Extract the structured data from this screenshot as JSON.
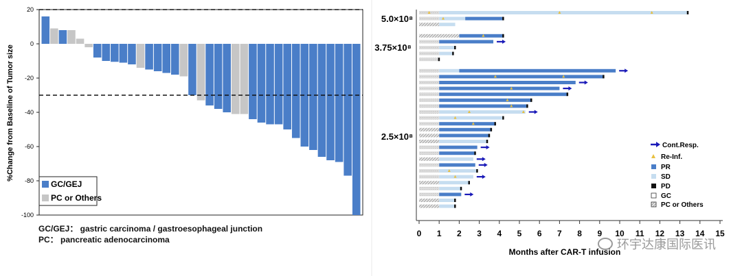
{
  "chart_data": [
    {
      "type": "bar",
      "title": "",
      "ylabel": "%Change from Baseline of Tumor size",
      "xlabel": "",
      "ylim": [
        -100,
        20
      ],
      "yticks": [
        20,
        0,
        -20,
        -40,
        -60,
        -80,
        -100
      ],
      "reference_lines": [
        20,
        -30
      ],
      "values": [
        16,
        9,
        8,
        8,
        3,
        -2,
        -8,
        -10,
        -10.5,
        -11,
        -12,
        -14,
        -15,
        -16,
        -17,
        -18,
        -19,
        -30,
        -33,
        -36,
        -38,
        -40,
        -41,
        -41,
        -44,
        -46,
        -47,
        -47,
        -50,
        -55,
        -60,
        -62,
        -66,
        -68,
        -69,
        -77,
        -100
      ],
      "groups": [
        "GC/GEJ",
        "PC or Others",
        "GC/GEJ",
        "PC or Others",
        "PC or Others",
        "PC or Others",
        "GC/GEJ",
        "GC/GEJ",
        "GC/GEJ",
        "GC/GEJ",
        "GC/GEJ",
        "PC or Others",
        "GC/GEJ",
        "GC/GEJ",
        "GC/GEJ",
        "GC/GEJ",
        "PC or Others",
        "GC/GEJ",
        "PC or Others",
        "GC/GEJ",
        "GC/GEJ",
        "GC/GEJ",
        "PC or Others",
        "PC or Others",
        "GC/GEJ",
        "GC/GEJ",
        "GC/GEJ",
        "GC/GEJ",
        "GC/GEJ",
        "GC/GEJ",
        "GC/GEJ",
        "GC/GEJ",
        "GC/GEJ",
        "GC/GEJ",
        "GC/GEJ",
        "GC/GEJ",
        "GC/GEJ"
      ],
      "legend": [
        {
          "label": "GC/GEJ",
          "color": "#4a7ec8"
        },
        {
          "label": "PC or Others",
          "color": "#c6c6c6"
        }
      ],
      "legend_position": "bottom-left"
    },
    {
      "type": "swimmer",
      "xlabel": "Months after CAR-T infusion",
      "xlim": [
        0,
        15
      ],
      "xticks": [
        0,
        1,
        2,
        3,
        4,
        5,
        6,
        7,
        8,
        9,
        10,
        11,
        12,
        13,
        14,
        15
      ],
      "dose_labels": [
        {
          "label": "5.0×10⁸"
        },
        {
          "label": "3.75×10⁸"
        },
        {
          "label": "2.5×10⁸"
        }
      ],
      "patients": [
        {
          "dose": "5.0×10⁸",
          "type": "GC",
          "segments": [
            [
              "GC",
              0,
              1
            ],
            [
              "SD",
              1,
              13.4
            ]
          ],
          "pd": 13.4,
          "reinf": [
            7,
            11.6,
            0.5
          ]
        },
        {
          "dose": "5.0×10⁸",
          "type": "GC",
          "segments": [
            [
              "GC",
              0,
              1
            ],
            [
              "SD",
              1,
              2.3
            ],
            [
              "PR",
              2.3,
              4.2
            ]
          ],
          "pd": 4.2,
          "reinf": [
            1.2
          ]
        },
        {
          "dose": "5.0×10⁸",
          "type": "PC",
          "segments": [
            [
              "PC",
              0,
              1
            ],
            [
              "SD",
              1,
              1.8
            ]
          ],
          "pd": null,
          "reinf": []
        },
        {
          "dose": "3.75×10⁸",
          "type": "PC",
          "segments": [
            [
              "PC",
              0,
              2
            ],
            [
              "PR",
              2,
              4.2
            ]
          ],
          "pd": 4.2,
          "reinf": [
            3.2
          ]
        },
        {
          "dose": "3.75×10⁸",
          "type": "GC",
          "segments": [
            [
              "GC",
              0,
              1
            ],
            [
              "PR",
              1,
              3.7
            ]
          ],
          "pd": null,
          "reinf": [],
          "cont": true
        },
        {
          "dose": "3.75×10⁸",
          "type": "GC",
          "segments": [
            [
              "GC",
              0,
              1
            ],
            [
              "SD",
              1,
              1.8
            ]
          ],
          "pd": 1.8,
          "reinf": []
        },
        {
          "dose": "3.75×10⁸",
          "type": "GC",
          "segments": [
            [
              "GC",
              0,
              1
            ],
            [
              "SD",
              1,
              1.7
            ]
          ],
          "pd": 1.7,
          "reinf": []
        },
        {
          "dose": "3.75×10⁸",
          "type": "GC",
          "segments": [
            [
              "GC",
              0,
              1
            ]
          ],
          "pd": 1.0,
          "reinf": []
        },
        {
          "dose": "2.5×10⁸",
          "type": "GC",
          "segments": [
            [
              "GC",
              0,
              1
            ],
            [
              "SD",
              1,
              2
            ],
            [
              "PR",
              2,
              9.8
            ]
          ],
          "pd": null,
          "reinf": [],
          "cont": true
        },
        {
          "dose": "2.5×10⁸",
          "type": "GC",
          "segments": [
            [
              "GC",
              0,
              1
            ],
            [
              "PR",
              1,
              9.2
            ]
          ],
          "pd": 9.2,
          "reinf": [
            3.8,
            7.2
          ]
        },
        {
          "dose": "2.5×10⁸",
          "type": "GC",
          "segments": [
            [
              "GC",
              0,
              1
            ],
            [
              "PR",
              1,
              7.8
            ]
          ],
          "pd": null,
          "reinf": [],
          "cont": true
        },
        {
          "dose": "2.5×10⁸",
          "type": "GC",
          "segments": [
            [
              "GC",
              0,
              1
            ],
            [
              "PR",
              1,
              7
            ]
          ],
          "pd": null,
          "reinf": [
            4.6
          ],
          "cont": true
        },
        {
          "dose": "2.5×10⁸",
          "type": "GC",
          "segments": [
            [
              "GC",
              0,
              1
            ],
            [
              "PR",
              1,
              7.4
            ]
          ],
          "pd": 7.4,
          "reinf": []
        },
        {
          "dose": "2.5×10⁸",
          "type": "GC",
          "segments": [
            [
              "GC",
              0,
              1
            ],
            [
              "PR",
              1,
              5.6
            ]
          ],
          "pd": 5.6,
          "reinf": [
            4.4
          ]
        },
        {
          "dose": "2.5×10⁸",
          "type": "GC",
          "segments": [
            [
              "GC",
              0,
              1
            ],
            [
              "PR",
              1,
              5.4
            ]
          ],
          "pd": 5.4,
          "reinf": [
            4.6
          ]
        },
        {
          "dose": "2.5×10⁸",
          "type": "GC",
          "segments": [
            [
              "GC",
              0,
              1
            ],
            [
              "SD",
              1,
              5.3
            ]
          ],
          "pd": null,
          "reinf": [
            2.5,
            5.2
          ],
          "cont": true
        },
        {
          "dose": "2.5×10⁸",
          "type": "GC",
          "segments": [
            [
              "GC",
              0,
              1
            ],
            [
              "SD",
              1,
              4.2
            ]
          ],
          "pd": 4.2,
          "reinf": [
            1.8
          ]
        },
        {
          "dose": "2.5×10⁸",
          "type": "GC",
          "segments": [
            [
              "GC",
              0,
              1
            ],
            [
              "PR",
              1,
              3.8
            ]
          ],
          "pd": 3.8,
          "reinf": [
            2.7
          ]
        },
        {
          "dose": "2.5×10⁸",
          "type": "PC",
          "segments": [
            [
              "PC",
              0,
              1
            ],
            [
              "PR",
              1,
              3.6
            ]
          ],
          "pd": 3.6,
          "reinf": []
        },
        {
          "dose": "2.5×10⁸",
          "type": "PC",
          "segments": [
            [
              "PC",
              0,
              1
            ],
            [
              "PR",
              1,
              3.5
            ]
          ],
          "pd": 3.5,
          "reinf": []
        },
        {
          "dose": "2.5×10⁸",
          "type": "PC",
          "segments": [
            [
              "PC",
              0,
              1
            ],
            [
              "SD",
              1,
              3.4
            ]
          ],
          "pd": 3.4,
          "reinf": []
        },
        {
          "dose": "2.5×10⁸",
          "type": "GC",
          "segments": [
            [
              "GC",
              0,
              1
            ],
            [
              "PR",
              1,
              2.9
            ]
          ],
          "pd": null,
          "reinf": [],
          "cont": true
        },
        {
          "dose": "2.5×10⁸",
          "type": "GC",
          "segments": [
            [
              "GC",
              0,
              1
            ],
            [
              "PR",
              1,
              2.8
            ]
          ],
          "pd": 2.8,
          "reinf": []
        },
        {
          "dose": "2.5×10⁸",
          "type": "PC",
          "segments": [
            [
              "PC",
              0,
              1
            ],
            [
              "SD",
              1,
              2.7
            ]
          ],
          "pd": null,
          "reinf": [],
          "cont": true
        },
        {
          "dose": "2.5×10⁸",
          "type": "GC",
          "segments": [
            [
              "GC",
              0,
              1
            ],
            [
              "PR",
              1,
              2.8
            ]
          ],
          "pd": null,
          "reinf": [],
          "cont": true
        },
        {
          "dose": "2.5×10⁸",
          "type": "GC",
          "segments": [
            [
              "GC",
              0,
              1
            ],
            [
              "SD",
              1,
              2.9
            ]
          ],
          "pd": 2.9,
          "reinf": [
            1.5
          ]
        },
        {
          "dose": "2.5×10⁸",
          "type": "GC",
          "segments": [
            [
              "GC",
              0,
              1
            ],
            [
              "SD",
              1,
              2.7
            ]
          ],
          "pd": null,
          "reinf": [
            1.8
          ],
          "cont": true
        },
        {
          "dose": "2.5×10⁸",
          "type": "PC",
          "segments": [
            [
              "PC",
              0,
              1
            ],
            [
              "SD",
              1,
              2.5
            ]
          ],
          "pd": 2.5,
          "reinf": []
        },
        {
          "dose": "2.5×10⁸",
          "type": "GC",
          "segments": [
            [
              "GC",
              0,
              1
            ],
            [
              "SD",
              1,
              2.1
            ]
          ],
          "pd": 2.1,
          "reinf": []
        },
        {
          "dose": "2.5×10⁸",
          "type": "GC",
          "segments": [
            [
              "GC",
              0,
              1
            ],
            [
              "PR",
              1,
              2.1
            ]
          ],
          "pd": null,
          "reinf": [],
          "cont": true
        },
        {
          "dose": "2.5×10⁸",
          "type": "PC",
          "segments": [
            [
              "PC",
              0,
              1
            ],
            [
              "SD",
              1,
              1.8
            ]
          ],
          "pd": 1.8,
          "reinf": []
        },
        {
          "dose": "2.5×10⁸",
          "type": "PC",
          "segments": [
            [
              "PC",
              0,
              1
            ],
            [
              "SD",
              1,
              1.8
            ]
          ],
          "pd": 1.8,
          "reinf": []
        }
      ],
      "legend": [
        {
          "key": "cont",
          "label": "Cont.Resp.",
          "color": "#1a1ab8"
        },
        {
          "key": "reinf",
          "label": "Re-Inf.",
          "color": "#e8c040"
        },
        {
          "key": "PR",
          "label": "PR",
          "color": "#4a7ec8"
        },
        {
          "key": "SD",
          "label": "SD",
          "color": "#c6ddf0"
        },
        {
          "key": "PD",
          "label": "PD",
          "color": "#111111"
        },
        {
          "key": "GC",
          "label": "GC",
          "color": "#ffffff"
        },
        {
          "key": "PC",
          "label": "PC or Others",
          "color": "#d0d0d0"
        }
      ],
      "legend_position": "right"
    }
  ],
  "notes": {
    "line1": "GC/GEJ： gastric carcinoma / gastroesophageal junction",
    "line2": "PC： pancreatic adenocarcinoma"
  },
  "watermark": "环宇达康国际医讯",
  "colors": {
    "blue": "#4a7ec8",
    "gray": "#c6c6c6",
    "light": "#c6ddf0",
    "gc_fill": "#d8d8d8"
  }
}
